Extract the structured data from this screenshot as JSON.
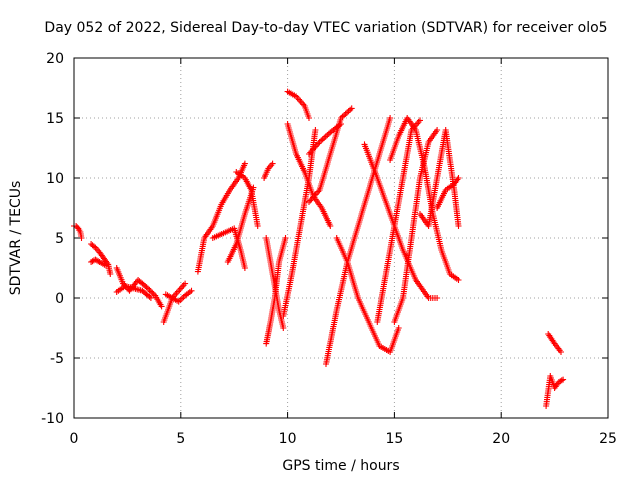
{
  "chart_data": {
    "type": "scatter",
    "title": "Day 052 of 2022, Sidereal Day-to-day VTEC variation (SDTVAR) for receiver olo5",
    "xlabel": "GPS time / hours",
    "ylabel": "SDTVAR / TECUs",
    "xlim": [
      0,
      25
    ],
    "ylim": [
      -10,
      20
    ],
    "xticks": [
      0,
      5,
      10,
      15,
      20,
      25
    ],
    "yticks": [
      -10,
      -5,
      0,
      5,
      10,
      15,
      20
    ],
    "xtick_labels": [
      "0",
      "5",
      "10",
      "15",
      "20",
      "25"
    ],
    "ytick_labels": [
      "-10",
      "-5",
      "0",
      "5",
      "10",
      "15",
      "20"
    ],
    "grid": true,
    "marker": "+",
    "color": "#ff0000",
    "series": [
      {
        "name": "s1",
        "x": [
          0.0,
          0.1,
          0.2,
          0.3,
          0.35
        ],
        "y": [
          6.0,
          6.0,
          5.8,
          5.5,
          5.0
        ]
      },
      {
        "name": "s2",
        "x": [
          0.8,
          1.0,
          1.2,
          1.4,
          1.6,
          1.7
        ],
        "y": [
          4.5,
          4.2,
          3.8,
          3.3,
          2.8,
          2.0
        ]
      },
      {
        "name": "s3",
        "x": [
          0.8,
          1.0,
          1.2,
          1.5
        ],
        "y": [
          3.0,
          3.2,
          3.0,
          2.7
        ]
      },
      {
        "name": "s4",
        "x": [
          2.0,
          2.3,
          2.6,
          3.0,
          3.4,
          3.8,
          4.1
        ],
        "y": [
          2.5,
          1.2,
          0.6,
          1.5,
          0.9,
          0.2,
          -0.7
        ]
      },
      {
        "name": "s5",
        "x": [
          2.0,
          2.4,
          2.8,
          3.2,
          3.6
        ],
        "y": [
          0.5,
          1.0,
          0.8,
          0.6,
          0.0
        ]
      },
      {
        "name": "s6",
        "x": [
          4.2,
          4.4,
          4.6,
          4.8,
          5.0,
          5.2
        ],
        "y": [
          -2.0,
          -1.0,
          0.0,
          0.4,
          0.8,
          1.2
        ]
      },
      {
        "name": "s7",
        "x": [
          4.3,
          4.6,
          4.9,
          5.2,
          5.5
        ],
        "y": [
          0.3,
          0.0,
          -0.3,
          0.2,
          0.6
        ]
      },
      {
        "name": "s8",
        "x": [
          5.8,
          6.1,
          6.5,
          6.9,
          7.3,
          7.7,
          8.0
        ],
        "y": [
          2.2,
          5.0,
          6.0,
          7.8,
          9.0,
          10.0,
          11.2
        ]
      },
      {
        "name": "s9",
        "x": [
          6.5,
          7.0,
          7.5,
          7.8,
          8.0
        ],
        "y": [
          5.0,
          5.4,
          5.8,
          4.0,
          2.5
        ]
      },
      {
        "name": "s10",
        "x": [
          7.2,
          7.6,
          8.0,
          8.4
        ],
        "y": [
          3.0,
          4.5,
          7.0,
          9.2
        ]
      },
      {
        "name": "s11",
        "x": [
          7.6,
          8.0,
          8.3,
          8.6
        ],
        "y": [
          10.5,
          10.0,
          9.0,
          6.0
        ]
      },
      {
        "name": "s12",
        "x": [
          9.0,
          9.2,
          9.4,
          9.6,
          9.9
        ],
        "y": [
          -3.8,
          -2.0,
          0.0,
          3.0,
          5.0
        ]
      },
      {
        "name": "s13",
        "x": [
          9.0,
          9.2,
          9.4,
          9.6,
          9.8
        ],
        "y": [
          5.0,
          3.0,
          1.0,
          -1.0,
          -2.5
        ]
      },
      {
        "name": "s14",
        "x": [
          8.9,
          9.1,
          9.3
        ],
        "y": [
          10.0,
          10.8,
          11.2
        ]
      },
      {
        "name": "s15",
        "x": [
          9.8,
          10.2,
          10.6,
          11.0,
          11.3
        ],
        "y": [
          -1.5,
          2.0,
          6.0,
          10.0,
          14.0
        ]
      },
      {
        "name": "s16",
        "x": [
          10.0,
          10.4,
          10.8,
          11.2,
          11.6,
          12.0
        ],
        "y": [
          14.5,
          12.0,
          10.5,
          8.5,
          7.5,
          6.0
        ]
      },
      {
        "name": "s17",
        "x": [
          10.0,
          10.4,
          10.8,
          11.0
        ],
        "y": [
          17.2,
          16.8,
          16.0,
          15.0
        ]
      },
      {
        "name": "s18",
        "x": [
          11.0,
          11.5,
          12.0,
          12.5,
          13.0
        ],
        "y": [
          8.0,
          9.0,
          12.0,
          15.0,
          15.8
        ]
      },
      {
        "name": "s19",
        "x": [
          11.0,
          11.5,
          12.0,
          12.5
        ],
        "y": [
          12.0,
          13.0,
          13.8,
          14.5
        ]
      },
      {
        "name": "s20",
        "x": [
          11.8,
          12.3,
          12.8,
          13.3,
          13.8,
          14.3,
          14.8
        ],
        "y": [
          -5.5,
          -1.0,
          3.0,
          6.0,
          9.0,
          12.0,
          15.0
        ]
      },
      {
        "name": "s21",
        "x": [
          12.3,
          12.8,
          13.3,
          13.8,
          14.3,
          14.8,
          15.2
        ],
        "y": [
          5.0,
          3.0,
          0.0,
          -2.0,
          -4.0,
          -4.5,
          -2.5
        ]
      },
      {
        "name": "s22",
        "x": [
          13.6,
          14.2,
          14.8,
          15.4,
          16.0,
          16.6,
          17.0
        ],
        "y": [
          12.8,
          10.0,
          7.0,
          4.0,
          1.5,
          0.0,
          0.0
        ]
      },
      {
        "name": "s23",
        "x": [
          14.2,
          14.6,
          15.0,
          15.4,
          15.8,
          16.2
        ],
        "y": [
          -2.0,
          2.0,
          6.0,
          10.0,
          14.0,
          14.8
        ]
      },
      {
        "name": "s24",
        "x": [
          15.0,
          15.4,
          15.8,
          16.2,
          16.6,
          17.0
        ],
        "y": [
          -2.0,
          0.0,
          5.0,
          10.0,
          13.0,
          14.0
        ]
      },
      {
        "name": "s25",
        "x": [
          14.8,
          15.2,
          15.6,
          16.0,
          16.4,
          16.8,
          17.2,
          17.6,
          18.0
        ],
        "y": [
          11.5,
          13.5,
          15.0,
          14.0,
          11.0,
          7.0,
          4.0,
          2.0,
          1.5
        ]
      },
      {
        "name": "s26",
        "x": [
          16.2,
          16.6,
          17.0,
          17.4,
          17.8,
          18.0
        ],
        "y": [
          7.0,
          6.0,
          10.0,
          14.0,
          9.0,
          6.0
        ]
      },
      {
        "name": "s27",
        "x": [
          17.0,
          17.4,
          17.8,
          18.0
        ],
        "y": [
          7.5,
          9.0,
          9.5,
          10.0
        ]
      },
      {
        "name": "s28",
        "x": [
          22.2,
          22.5,
          22.8
        ],
        "y": [
          -3.0,
          -3.8,
          -4.5
        ]
      },
      {
        "name": "s29",
        "x": [
          22.1,
          22.3,
          22.5,
          22.7,
          22.9
        ],
        "y": [
          -9.0,
          -6.5,
          -7.5,
          -7.0,
          -6.8
        ]
      }
    ]
  }
}
